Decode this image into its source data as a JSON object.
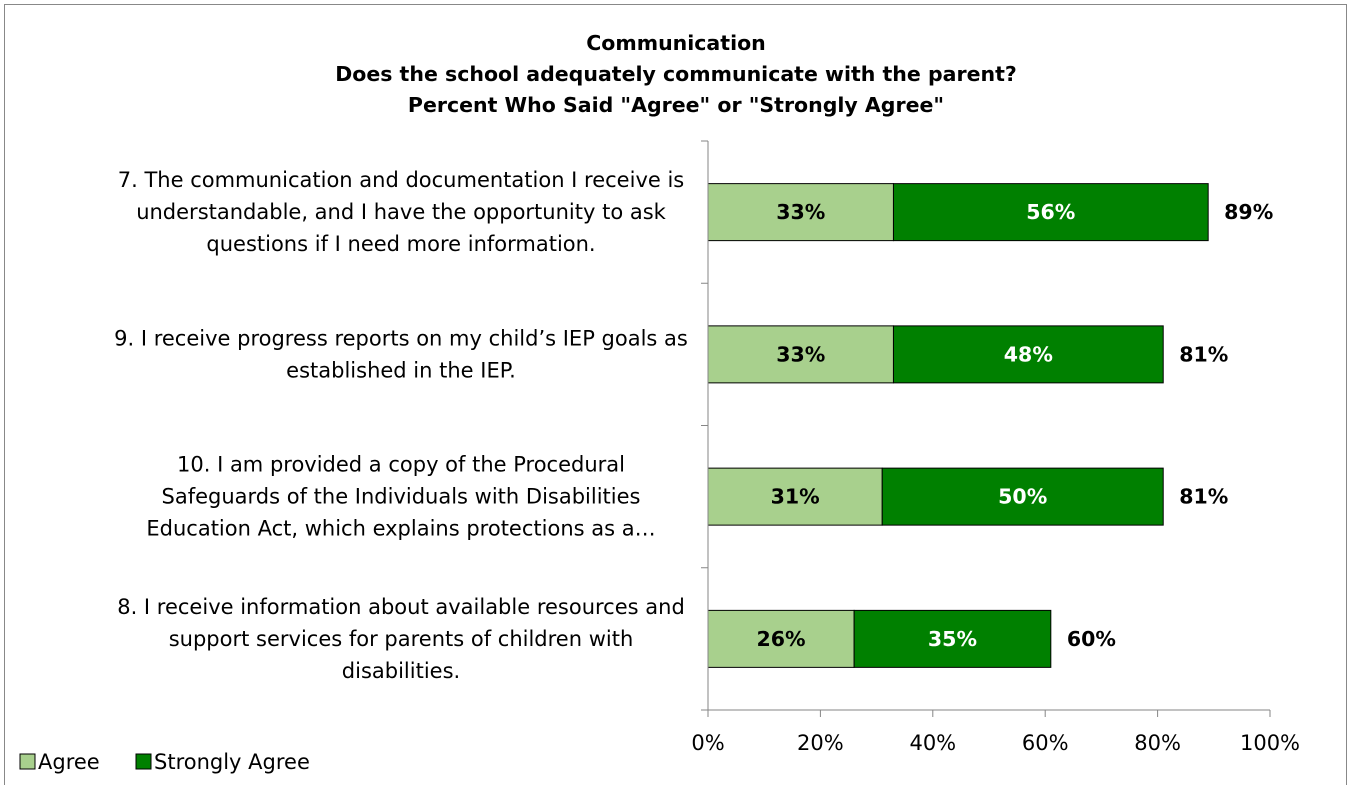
{
  "chart_data": {
    "type": "bar",
    "orientation": "horizontal",
    "stacked": true,
    "title": [
      "Communication",
      "Does the school adequately communicate with the parent?",
      "Percent Who Said \"Agree\" or \"Strongly Agree\""
    ],
    "categories": [
      [
        "7. The communication and documentation I receive is",
        "understandable, and I have the opportunity to ask",
        "questions if I need more information."
      ],
      [
        "9. I receive progress reports on my child’s IEP goals as",
        "established in the IEP."
      ],
      [
        "10. I am provided a copy of the Procedural",
        "Safeguards of the Individuals with Disabilities",
        "Education Act, which explains protections as a…"
      ],
      [
        "8. I receive information about available resources and",
        "support services for parents of children with",
        "disabilities."
      ]
    ],
    "series": [
      {
        "name": "Agree",
        "color": "#a8d08d",
        "values": [
          33,
          33,
          31,
          26
        ],
        "labels": [
          "33%",
          "33%",
          "31%",
          "26%"
        ],
        "label_color": "#000000"
      },
      {
        "name": "Strongly Agree",
        "color": "#008000",
        "values": [
          56,
          48,
          50,
          35
        ],
        "labels": [
          "56%",
          "48%",
          "50%",
          "35%"
        ],
        "label_color": "#ffffff"
      }
    ],
    "totals": [
      "89%",
      "81%",
      "81%",
      "60%"
    ],
    "xlim": [
      0,
      100
    ],
    "xticks": [
      "0%",
      "20%",
      "40%",
      "60%",
      "80%",
      "100%"
    ],
    "grid": false,
    "legend_position": "bottom-left"
  }
}
